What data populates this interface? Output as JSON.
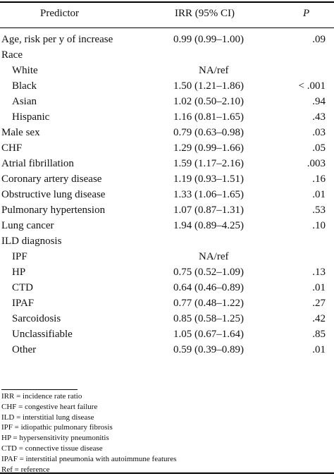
{
  "header": {
    "predictor": "Predictor",
    "irr": "IRR (95% CI)",
    "p": "P"
  },
  "rows": [
    {
      "label": "Age, risk per y of increase",
      "irr": "0.99 (0.99–1.00)",
      "p": ".09",
      "indent": false
    },
    {
      "label": "Race",
      "irr": "",
      "p": "",
      "indent": false
    },
    {
      "label": "White",
      "irr": "NA/ref",
      "p": "",
      "indent": true
    },
    {
      "label": "Black",
      "irr": "1.50 (1.21–1.86)",
      "p": "< .001",
      "indent": true
    },
    {
      "label": "Asian",
      "irr": "1.02 (0.50–2.10)",
      "p": ".94",
      "indent": true
    },
    {
      "label": "Hispanic",
      "irr": "1.16 (0.81–1.65)",
      "p": ".43",
      "indent": true
    },
    {
      "label": "Male sex",
      "irr": "0.79 (0.63–0.98)",
      "p": ".03",
      "indent": false
    },
    {
      "label": "CHF",
      "irr": "1.29 (0.99–1.66)",
      "p": ".05",
      "indent": false
    },
    {
      "label": "Atrial fibrillation",
      "irr": "1.59 (1.17–2.16)",
      "p": ".003",
      "indent": false
    },
    {
      "label": "Coronary artery disease",
      "irr": "1.19 (0.93–1.51)",
      "p": ".16",
      "indent": false
    },
    {
      "label": "Obstructive lung disease",
      "irr": "1.33 (1.06–1.65)",
      "p": ".01",
      "indent": false
    },
    {
      "label": "Pulmonary hypertension",
      "irr": "1.07 (0.87–1.31)",
      "p": ".53",
      "indent": false
    },
    {
      "label": "Lung cancer",
      "irr": "1.94 (0.89–4.25)",
      "p": ".10",
      "indent": false
    },
    {
      "label": "ILD diagnosis",
      "irr": "",
      "p": "",
      "indent": false
    },
    {
      "label": "IPF",
      "irr": "NA/ref",
      "p": "",
      "indent": true
    },
    {
      "label": "HP",
      "irr": "0.75 (0.52–1.09)",
      "p": ".13",
      "indent": true
    },
    {
      "label": "CTD",
      "irr": "0.64 (0.46–0.89)",
      "p": ".01",
      "indent": true
    },
    {
      "label": "IPAF",
      "irr": "0.77 (0.48–1.22)",
      "p": ".27",
      "indent": true
    },
    {
      "label": "Sarcoidosis",
      "irr": "0.85 (0.58–1.25)",
      "p": ".42",
      "indent": true
    },
    {
      "label": "Unclassifiable",
      "irr": "1.05 (0.67–1.64)",
      "p": ".85",
      "indent": true
    },
    {
      "label": "Other",
      "irr": "0.59 (0.39–0.89)",
      "p": ".01",
      "indent": true
    }
  ],
  "footnotes": [
    "IRR = incidence rate ratio",
    "CHF = congestive heart failure",
    "ILD = interstitial lung disease",
    "IPF = idiopathic pulmonary fibrosis",
    "HP = hypersensitivity pneumonitis",
    "CTD = connective tissue disease",
    "IPAF = interstitial pneumonia with autoimmune features",
    "Ref = reference"
  ]
}
